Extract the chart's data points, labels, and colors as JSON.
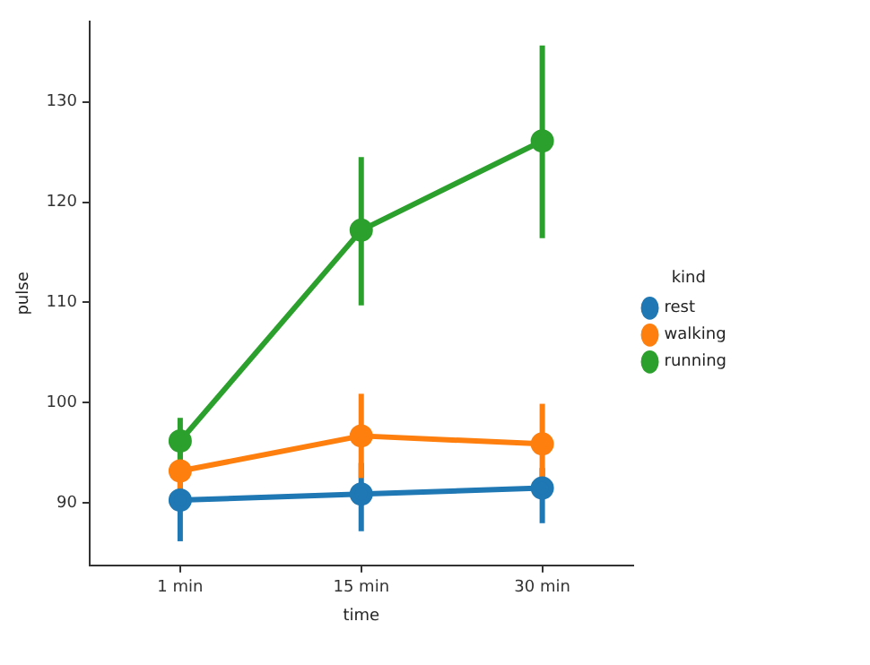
{
  "chart_data": {
    "type": "line",
    "xlabel": "time",
    "ylabel": "pulse",
    "legend_title": "kind",
    "categories": [
      "1 min",
      "15 min",
      "30 min"
    ],
    "series": [
      {
        "name": "rest",
        "color": "#1f77b4",
        "values": [
          90.3,
          90.9,
          91.5
        ],
        "errors": [
          [
            86.2,
            94.0
          ],
          [
            87.2,
            94.0
          ],
          [
            88.0,
            93.5
          ]
        ]
      },
      {
        "name": "walking",
        "color": "#ff7f0e",
        "values": [
          93.2,
          96.7,
          95.9
        ],
        "errors": [
          [
            91.4,
            95.2
          ],
          [
            92.5,
            100.9
          ],
          [
            92.1,
            99.9
          ]
        ]
      },
      {
        "name": "running",
        "color": "#2ca02c",
        "values": [
          96.2,
          117.2,
          126.1
        ],
        "errors": [
          [
            93.7,
            98.5
          ],
          [
            109.7,
            124.5
          ],
          [
            116.4,
            135.6
          ]
        ]
      }
    ],
    "ylim": [
      83.8,
      138
    ],
    "yticks": [
      90,
      100,
      110,
      120,
      130
    ],
    "grid": false,
    "legend": "right",
    "marker": "circle",
    "line_style": "solid"
  }
}
